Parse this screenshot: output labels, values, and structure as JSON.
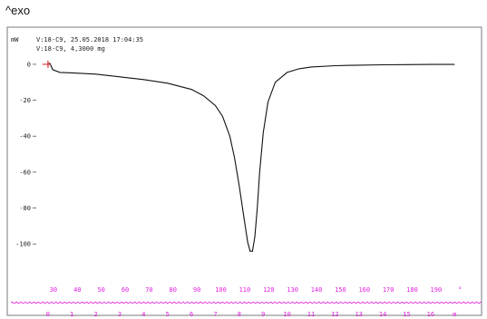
{
  "header": {
    "exo_label": "^exo"
  },
  "sample_info": {
    "line1": "V:18-C9, 25.05.2018 17:04:35",
    "line2": "V:18-C9, 4,3000 mg"
  },
  "colors": {
    "curve": "#111111",
    "frame": "#7a7a7a",
    "temperature_axis": "#e020e0",
    "marker": "#e03030"
  },
  "chart_data": {
    "type": "line",
    "title": "",
    "ylabel": "mW",
    "xlabel": "",
    "ylim": [
      -113,
      4
    ],
    "xlim": [
      -0.3,
      17.9
    ],
    "grid": false,
    "y_ticks": [
      0,
      -20,
      -40,
      -60,
      -80,
      -100
    ],
    "y_tick_labels": [
      "0",
      "-20",
      "-40",
      "-60",
      "-80",
      "-100"
    ],
    "time_ticks": [
      0,
      1,
      2,
      3,
      4,
      5,
      6,
      7,
      8,
      9,
      10,
      11,
      12,
      13,
      14,
      15,
      16,
      17
    ],
    "time_tick_labels": [
      "0",
      "1",
      "2",
      "3",
      "4",
      "5",
      "6",
      "7",
      "8",
      "9",
      "10",
      "11",
      "12",
      "13",
      "14",
      "15",
      "16",
      "m"
    ],
    "temperature_tick_labels": [
      "30",
      "40",
      "50",
      "60",
      "70",
      "80",
      "90",
      "100",
      "110",
      "120",
      "130",
      "140",
      "150",
      "160",
      "170",
      "180",
      "190",
      "°"
    ],
    "series": [
      {
        "x": [
          0,
          0.08,
          0.2,
          0.5,
          1,
          2,
          3,
          4,
          5,
          6,
          6.5,
          7,
          7.3,
          7.6,
          7.8,
          8.0,
          8.2,
          8.35,
          8.45,
          8.55,
          8.65,
          8.75,
          8.85,
          9.0,
          9.2,
          9.5,
          10,
          10.5,
          11,
          12,
          13,
          14,
          15,
          16,
          17
        ],
        "y": [
          0,
          0.5,
          -3,
          -4.5,
          -4.8,
          -5.5,
          -7,
          -8.5,
          -10.5,
          -14,
          -17.5,
          -23,
          -29,
          -40,
          -52,
          -68,
          -86,
          -99,
          -104,
          -104,
          -96,
          -80,
          -60,
          -38,
          -21,
          -10,
          -4.5,
          -2.5,
          -1.5,
          -0.8,
          -0.5,
          -0.3,
          -0.2,
          -0.1,
          -0.1
        ]
      }
    ]
  }
}
